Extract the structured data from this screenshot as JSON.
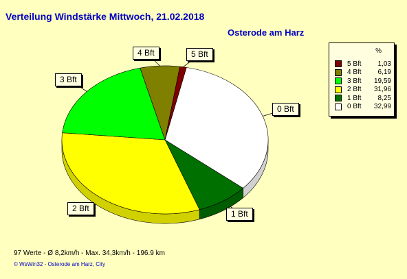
{
  "chart_data": {
    "type": "pie",
    "title": "Verteilung Windstärke  Mittwoch, 21.02.2018",
    "subtitle": "Osterode am Harz",
    "legend_header": "%",
    "legend_placement": "right",
    "slices": [
      {
        "label": "0 Bft",
        "value": 32.99,
        "value_text": "32,99",
        "color": "#ffffff"
      },
      {
        "label": "1 Bft",
        "value": 8.25,
        "value_text": "8,25",
        "color": "#007000"
      },
      {
        "label": "2 Bft",
        "value": 31.96,
        "value_text": "31,96",
        "color": "#ffff00"
      },
      {
        "label": "3 Bft",
        "value": 19.59,
        "value_text": "19,59",
        "color": "#00ff00"
      },
      {
        "label": "4 Bft",
        "value": 6.19,
        "value_text": "6,19",
        "color": "#808000"
      },
      {
        "label": "5 Bft",
        "value": 1.03,
        "value_text": "1,03",
        "color": "#800000"
      }
    ],
    "legend_order": [
      "5 Bft",
      "4 Bft",
      "3 Bft",
      "2 Bft",
      "1 Bft",
      "0 Bft"
    ]
  },
  "stats_line": "97 Werte   -   Ø 8,2km/h  -  Max. 34,3km/h   -   196.9 km",
  "footer": "© WsWin32  -  Osterode am Harz, City"
}
